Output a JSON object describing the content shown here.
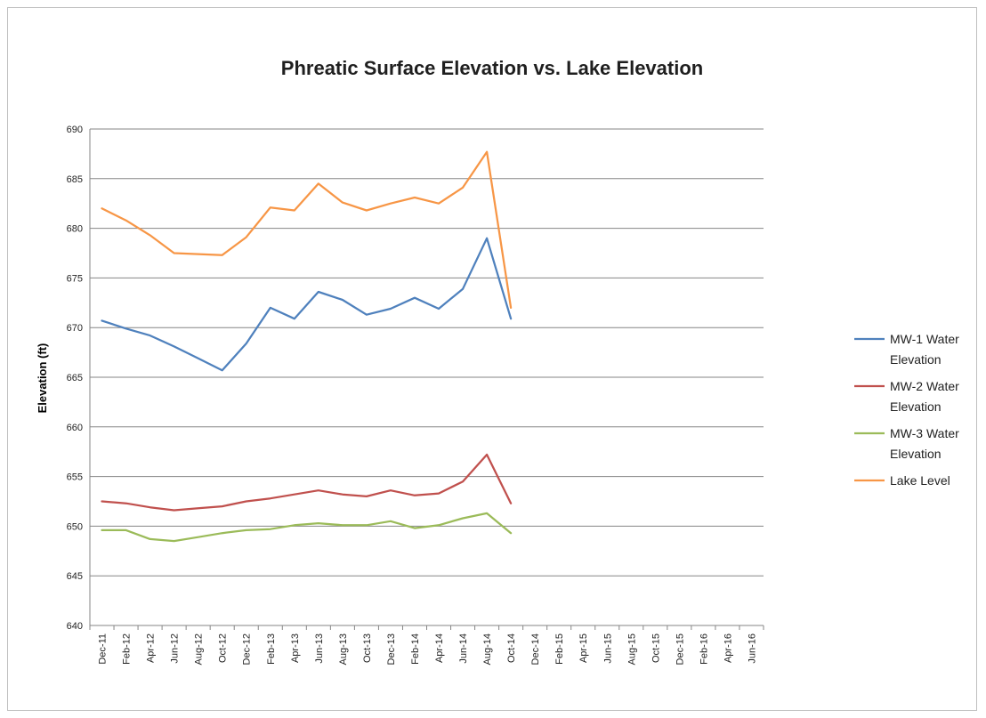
{
  "chart_data": {
    "type": "line",
    "title": "Phreatic Surface Elevation vs. Lake Elevation",
    "xlabel": "",
    "ylabel": "Elevation (ft)",
    "ylim": [
      640,
      690
    ],
    "yticks": [
      640,
      645,
      650,
      655,
      660,
      665,
      670,
      675,
      680,
      685,
      690
    ],
    "grid": "horizontal",
    "legend_position": "right",
    "categories": [
      "Dec-11",
      "Feb-12",
      "Apr-12",
      "Jun-12",
      "Aug-12",
      "Oct-12",
      "Dec-12",
      "Feb-13",
      "Apr-13",
      "Jun-13",
      "Aug-13",
      "Oct-13",
      "Dec-13",
      "Feb-14",
      "Apr-14",
      "Jun-14",
      "Aug-14",
      "Oct-14",
      "Dec-14",
      "Feb-15",
      "Apr-15",
      "Jun-15",
      "Aug-15",
      "Oct-15",
      "Dec-15",
      "Feb-16",
      "Apr-16",
      "Jun-16"
    ],
    "series": [
      {
        "name": "MW-1 Water Elevation",
        "legend_lines": [
          "MW-1 Water",
          "Elevation"
        ],
        "color": "#4f81bd",
        "points": [
          [
            "Dec-11",
            670.7
          ],
          [
            "Feb-12",
            669.9
          ],
          [
            "Apr-12",
            669.2
          ],
          [
            "Jun-12",
            668.1
          ],
          [
            "Aug-12",
            666.9
          ],
          [
            "Oct-12",
            665.7
          ],
          [
            "Dec-12",
            668.4
          ],
          [
            "Feb-13",
            672.0
          ],
          [
            "Apr-13",
            670.9
          ],
          [
            "Jun-13",
            673.6
          ],
          [
            "Aug-13",
            672.8
          ],
          [
            "Oct-13",
            671.3
          ],
          [
            "Dec-13",
            671.9
          ],
          [
            "Feb-14",
            673.0
          ],
          [
            "Apr-14",
            671.9
          ],
          [
            "Jun-14",
            673.9
          ],
          [
            "Aug-14",
            679.0
          ],
          [
            "Oct-14",
            670.9
          ]
        ]
      },
      {
        "name": "MW-2 Water Elevation",
        "legend_lines": [
          "MW-2 Water",
          "Elevation"
        ],
        "color": "#c0504d",
        "points": [
          [
            "Dec-11",
            652.5
          ],
          [
            "Feb-12",
            652.3
          ],
          [
            "Apr-12",
            651.9
          ],
          [
            "Jun-12",
            651.6
          ],
          [
            "Aug-12",
            651.8
          ],
          [
            "Oct-12",
            652.0
          ],
          [
            "Dec-12",
            652.5
          ],
          [
            "Feb-13",
            652.8
          ],
          [
            "Apr-13",
            653.2
          ],
          [
            "Jun-13",
            653.6
          ],
          [
            "Aug-13",
            653.2
          ],
          [
            "Oct-13",
            653.0
          ],
          [
            "Dec-13",
            653.6
          ],
          [
            "Feb-14",
            653.1
          ],
          [
            "Apr-14",
            653.3
          ],
          [
            "Jun-14",
            654.5
          ],
          [
            "Aug-14",
            657.2
          ],
          [
            "Oct-14",
            652.3
          ]
        ]
      },
      {
        "name": "MW-3 Water Elevation",
        "legend_lines": [
          "MW-3 Water",
          "Elevation"
        ],
        "color": "#9bbb59",
        "points": [
          [
            "Dec-11",
            649.6
          ],
          [
            "Feb-12",
            649.6
          ],
          [
            "Apr-12",
            648.7
          ],
          [
            "Jun-12",
            648.5
          ],
          [
            "Aug-12",
            648.9
          ],
          [
            "Oct-12",
            649.3
          ],
          [
            "Dec-12",
            649.6
          ],
          [
            "Feb-13",
            649.7
          ],
          [
            "Apr-13",
            650.1
          ],
          [
            "Jun-13",
            650.3
          ],
          [
            "Aug-13",
            650.1
          ],
          [
            "Oct-13",
            650.1
          ],
          [
            "Dec-13",
            650.5
          ],
          [
            "Feb-14",
            649.8
          ],
          [
            "Apr-14",
            650.1
          ],
          [
            "Jun-14",
            650.8
          ],
          [
            "Aug-14",
            651.3
          ],
          [
            "Oct-14",
            649.3
          ]
        ]
      },
      {
        "name": "Lake Level",
        "legend_lines": [
          "Lake Level"
        ],
        "color": "#f79646",
        "points": [
          [
            "Dec-11",
            682.0
          ],
          [
            "Feb-12",
            680.8
          ],
          [
            "Apr-12",
            679.3
          ],
          [
            "Jun-12",
            677.5
          ],
          [
            "Aug-12",
            677.4
          ],
          [
            "Oct-12",
            677.3
          ],
          [
            "Dec-12",
            679.1
          ],
          [
            "Feb-13",
            682.1
          ],
          [
            "Apr-13",
            681.8
          ],
          [
            "Jun-13",
            684.5
          ],
          [
            "Aug-13",
            682.6
          ],
          [
            "Oct-13",
            681.8
          ],
          [
            "Dec-13",
            682.5
          ],
          [
            "Feb-14",
            683.1
          ],
          [
            "Apr-14",
            682.5
          ],
          [
            "Jun-14",
            684.1
          ],
          [
            "Aug-14",
            687.7
          ],
          [
            "Oct-14",
            672.0
          ]
        ]
      }
    ]
  }
}
